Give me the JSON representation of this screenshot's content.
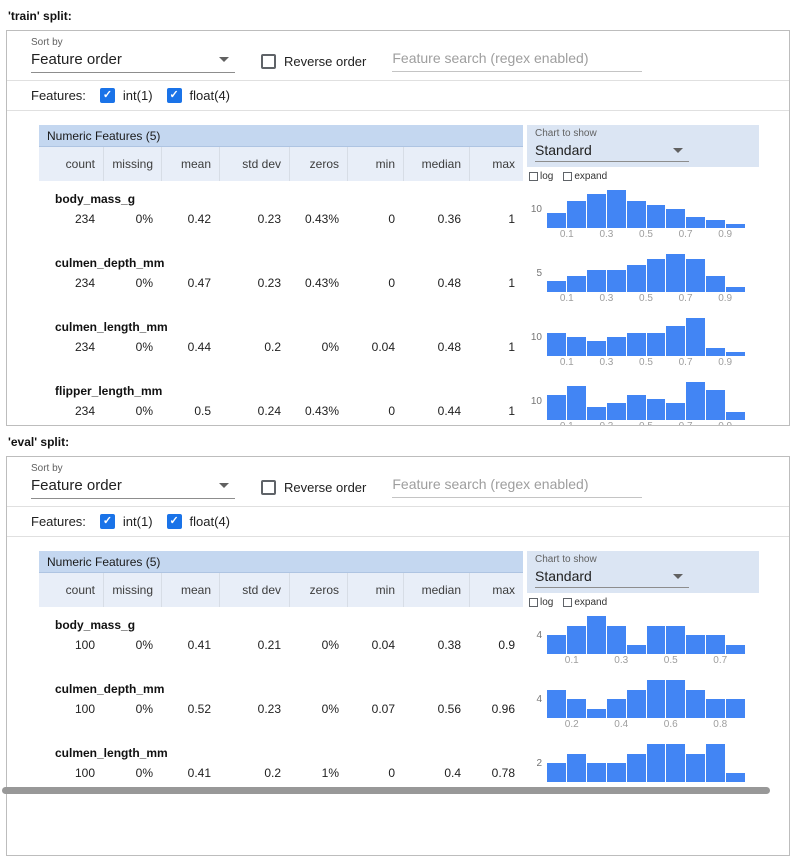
{
  "splits": [
    {
      "title": "'train' split:",
      "toolbar": {
        "sort_by_label": "Sort by",
        "sort_by_value": "Feature order",
        "reverse_order_label": "Reverse order",
        "search_placeholder": "Feature search (regex enabled)"
      },
      "features_filter": {
        "label": "Features:",
        "options": [
          {
            "label": "int(1)",
            "checked": true
          },
          {
            "label": "float(4)",
            "checked": true
          }
        ]
      },
      "chart_panel": {
        "label": "Chart to show",
        "value": "Standard",
        "log_label": "log",
        "expand_label": "expand"
      },
      "table": {
        "title": "Numeric Features (5)",
        "columns": [
          "count",
          "missing",
          "mean",
          "std dev",
          "zeros",
          "min",
          "median",
          "max"
        ],
        "rows": [
          {
            "name": "body_mass_g",
            "values": [
              "234",
              "0%",
              "0.42",
              "0.23",
              "0.43%",
              "0",
              "0.36",
              "1"
            ],
            "hist": {
              "type": "bar",
              "y_label": "10",
              "x_ticks": [
                "0.1",
                "0.3",
                "0.5",
                "0.7",
                "0.9"
              ],
              "values": [
                4,
                7,
                9,
                10,
                7,
                6,
                5,
                3,
                2,
                1
              ]
            }
          },
          {
            "name": "culmen_depth_mm",
            "values": [
              "234",
              "0%",
              "0.47",
              "0.23",
              "0.43%",
              "0",
              "0.48",
              "1"
            ],
            "hist": {
              "type": "bar",
              "y_label": "5",
              "x_ticks": [
                "0.1",
                "0.3",
                "0.5",
                "0.7",
                "0.9"
              ],
              "values": [
                2,
                3,
                4,
                4,
                5,
                6,
                7,
                6,
                3,
                1
              ]
            }
          },
          {
            "name": "culmen_length_mm",
            "values": [
              "234",
              "0%",
              "0.44",
              "0.2",
              "0%",
              "0.04",
              "0.48",
              "1"
            ],
            "hist": {
              "type": "bar",
              "y_label": "10",
              "x_ticks": [
                "0.1",
                "0.3",
                "0.5",
                "0.7",
                "0.9"
              ],
              "values": [
                6,
                5,
                4,
                5,
                6,
                6,
                8,
                10,
                2,
                1
              ]
            }
          },
          {
            "name": "flipper_length_mm",
            "values": [
              "234",
              "0%",
              "0.5",
              "0.24",
              "0.43%",
              "0",
              "0.44",
              "1"
            ],
            "hist": {
              "type": "bar",
              "y_label": "10",
              "x_ticks": [
                "0.1",
                "0.3",
                "0.5",
                "0.7",
                "0.9"
              ],
              "values": [
                6,
                8,
                3,
                4,
                6,
                5,
                4,
                9,
                7,
                2
              ]
            }
          }
        ]
      }
    },
    {
      "title": "'eval' split:",
      "toolbar": {
        "sort_by_label": "Sort by",
        "sort_by_value": "Feature order",
        "reverse_order_label": "Reverse order",
        "search_placeholder": "Feature search (regex enabled)"
      },
      "features_filter": {
        "label": "Features:",
        "options": [
          {
            "label": "int(1)",
            "checked": true
          },
          {
            "label": "float(4)",
            "checked": true
          }
        ]
      },
      "chart_panel": {
        "label": "Chart to show",
        "value": "Standard",
        "log_label": "log",
        "expand_label": "expand"
      },
      "table": {
        "title": "Numeric Features (5)",
        "columns": [
          "count",
          "missing",
          "mean",
          "std dev",
          "zeros",
          "min",
          "median",
          "max"
        ],
        "rows": [
          {
            "name": "body_mass_g",
            "values": [
              "100",
              "0%",
              "0.41",
              "0.21",
              "0%",
              "0.04",
              "0.38",
              "0.9"
            ],
            "hist": {
              "type": "bar",
              "y_label": "4",
              "x_ticks": [
                "0.1",
                "0.3",
                "0.5",
                "0.7"
              ],
              "values": [
                2,
                3,
                4,
                3,
                1,
                3,
                3,
                2,
                2,
                1
              ]
            }
          },
          {
            "name": "culmen_depth_mm",
            "values": [
              "100",
              "0%",
              "0.52",
              "0.23",
              "0%",
              "0.07",
              "0.56",
              "0.96"
            ],
            "hist": {
              "type": "bar",
              "y_label": "4",
              "x_ticks": [
                "0.2",
                "0.4",
                "0.6",
                "0.8"
              ],
              "values": [
                3,
                2,
                1,
                2,
                3,
                4,
                4,
                3,
                2,
                2
              ]
            }
          },
          {
            "name": "culmen_length_mm",
            "values": [
              "100",
              "0%",
              "0.41",
              "0.2",
              "1%",
              "0",
              "0.4",
              "0.78"
            ],
            "hist": {
              "type": "bar",
              "y_label": "2",
              "x_ticks": [],
              "values": [
                2,
                3,
                2,
                2,
                3,
                4,
                4,
                3,
                4,
                1
              ]
            }
          }
        ]
      }
    }
  ]
}
